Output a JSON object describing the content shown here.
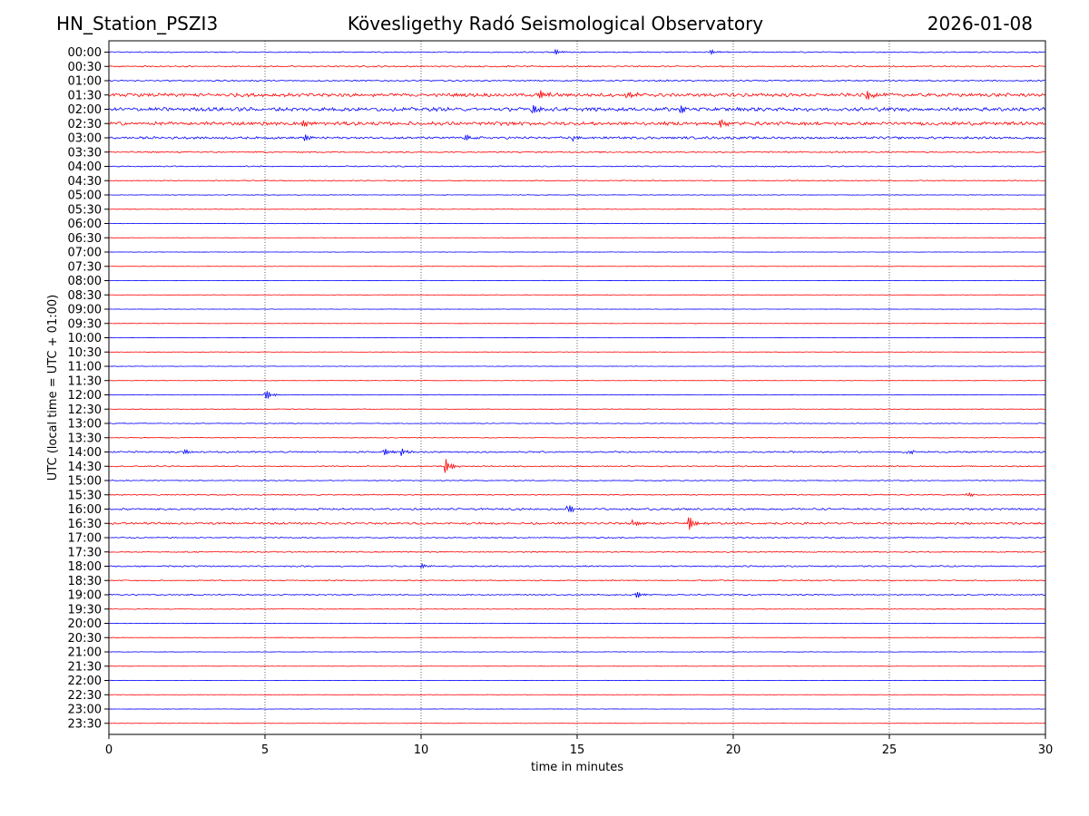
{
  "header": {
    "station": "HN_Station_PSZI3",
    "title": "Kövesligethy Radó Seismological Observatory",
    "date": "2026-01-08"
  },
  "chart_data": {
    "type": "line",
    "xlabel": "time in minutes",
    "ylabel": "UTC (local time = UTC + 01:00)",
    "xlim": [
      0,
      30
    ],
    "xticks": [
      0,
      5,
      10,
      15,
      20,
      25,
      30
    ],
    "vertical_gridlines_at": [
      5,
      10,
      15,
      20,
      25
    ],
    "grid": "vertical dotted",
    "series_colors": [
      "#0000ff",
      "#ff0000"
    ],
    "rows": [
      "00:00",
      "00:30",
      "01:00",
      "01:30",
      "02:00",
      "02:30",
      "03:00",
      "03:30",
      "04:00",
      "04:30",
      "05:00",
      "05:30",
      "06:00",
      "06:30",
      "07:00",
      "07:30",
      "08:00",
      "08:30",
      "09:00",
      "09:30",
      "10:00",
      "10:30",
      "11:00",
      "11:30",
      "12:00",
      "12:30",
      "13:00",
      "13:30",
      "14:00",
      "14:30",
      "15:00",
      "15:30",
      "16:00",
      "16:30",
      "17:00",
      "17:30",
      "18:00",
      "18:30",
      "19:00",
      "19:30",
      "20:00",
      "20:30",
      "21:00",
      "21:30",
      "22:00",
      "22:30",
      "23:00",
      "23:30"
    ],
    "noise_level": [
      0.5,
      0.6,
      0.6,
      1.5,
      1.6,
      1.5,
      1.0,
      0.6,
      0.5,
      0.4,
      0.25,
      0.25,
      0.2,
      0.15,
      0.15,
      0.15,
      0.15,
      0.15,
      0.15,
      0.15,
      0.15,
      0.2,
      0.2,
      0.2,
      0.25,
      0.25,
      0.3,
      0.3,
      0.7,
      0.5,
      0.4,
      0.5,
      0.8,
      0.9,
      0.5,
      0.5,
      0.6,
      0.5,
      0.5,
      0.3,
      0.2,
      0.2,
      0.2,
      0.15,
      0.15,
      0.15,
      0.15,
      0.15
    ],
    "events": [
      {
        "row": "00:00",
        "minute": 14.3,
        "amplitude": 3
      },
      {
        "row": "00:00",
        "minute": 19.3,
        "amplitude": 2.5
      },
      {
        "row": "01:30",
        "minute": 13.8,
        "amplitude": 6
      },
      {
        "row": "01:30",
        "minute": 16.6,
        "amplitude": 5
      },
      {
        "row": "01:30",
        "minute": 24.3,
        "amplitude": 5
      },
      {
        "row": "02:00",
        "minute": 13.6,
        "amplitude": 6
      },
      {
        "row": "02:00",
        "minute": 18.3,
        "amplitude": 7
      },
      {
        "row": "02:30",
        "minute": 6.2,
        "amplitude": 6
      },
      {
        "row": "02:30",
        "minute": 19.6,
        "amplitude": 5
      },
      {
        "row": "03:00",
        "minute": 6.3,
        "amplitude": 4
      },
      {
        "row": "03:00",
        "minute": 11.4,
        "amplitude": 4
      },
      {
        "row": "03:00",
        "minute": 14.9,
        "amplitude": 4
      },
      {
        "row": "12:00",
        "minute": 5.0,
        "amplitude": 7
      },
      {
        "row": "14:00",
        "minute": 8.8,
        "amplitude": 5
      },
      {
        "row": "14:00",
        "minute": 9.4,
        "amplitude": 4
      },
      {
        "row": "14:00",
        "minute": 2.4,
        "amplitude": 3
      },
      {
        "row": "14:00",
        "minute": 25.6,
        "amplitude": 3
      },
      {
        "row": "14:30",
        "minute": 10.8,
        "amplitude": 8
      },
      {
        "row": "16:00",
        "minute": 14.7,
        "amplitude": 7
      },
      {
        "row": "16:30",
        "minute": 18.6,
        "amplitude": 8
      },
      {
        "row": "16:30",
        "minute": 16.8,
        "amplitude": 4
      },
      {
        "row": "18:00",
        "minute": 10.0,
        "amplitude": 3
      },
      {
        "row": "19:00",
        "minute": 16.9,
        "amplitude": 4
      },
      {
        "row": "15:30",
        "minute": 27.5,
        "amplitude": 3
      }
    ]
  }
}
